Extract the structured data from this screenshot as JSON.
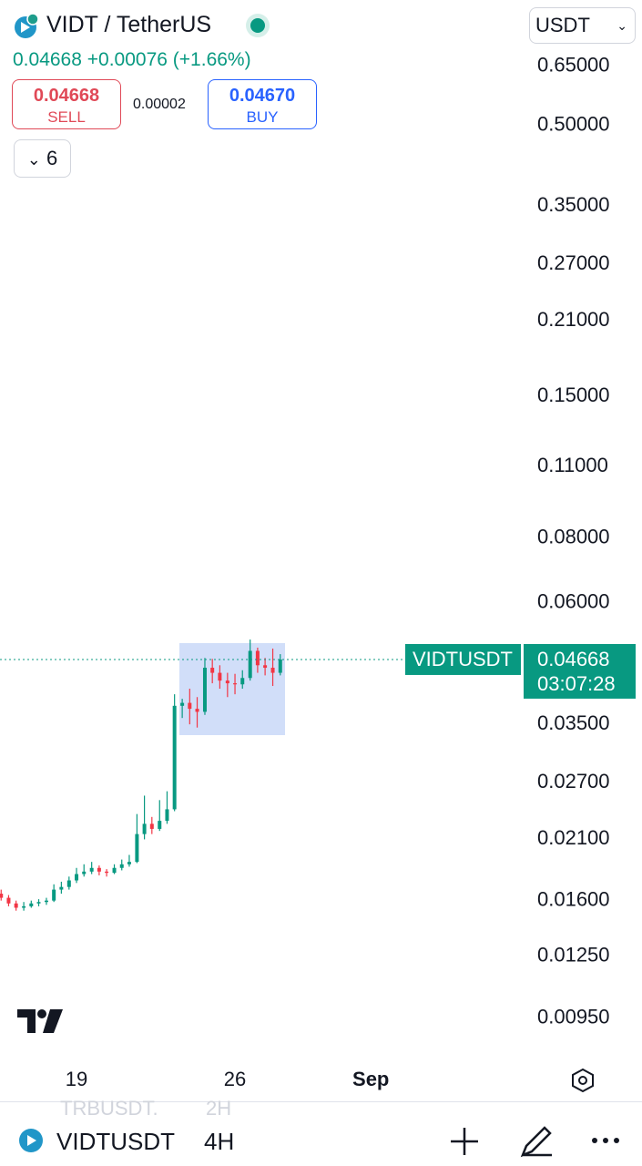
{
  "header": {
    "title": "VIDT / TetherUS",
    "currency": "USDT",
    "last": "0.04668",
    "change": "+0.00076",
    "change_pct": "(+1.66%)",
    "sell_price": "0.04668",
    "sell_label": "SELL",
    "spread": "0.00002",
    "buy_price": "0.04670",
    "buy_label": "BUY",
    "indicator_count": "6"
  },
  "chart_data": {
    "type": "candlestick",
    "log_scale": true,
    "grid": false,
    "up_color": "#089981",
    "down_color": "#f23645",
    "x": [
      15.67,
      16,
      16.33,
      16.67,
      17,
      17.33,
      17.67,
      18,
      18.33,
      18.67,
      19,
      19.33,
      19.67,
      20,
      20.33,
      20.67,
      21,
      21.33,
      21.67,
      22,
      22.33,
      22.67,
      23,
      23.33,
      23.67,
      24,
      24.33,
      24.67,
      25,
      25.33,
      25.67,
      26,
      26.33,
      26.67,
      27,
      27.33,
      27.67,
      28
    ],
    "open": [
      0.0165,
      0.0162,
      0.0158,
      0.0155,
      0.0156,
      0.0158,
      0.0159,
      0.016,
      0.0168,
      0.017,
      0.0175,
      0.018,
      0.0182,
      0.0185,
      0.0182,
      0.0181,
      0.0185,
      0.0188,
      0.019,
      0.0215,
      0.0225,
      0.022,
      0.0228,
      0.024,
      0.038,
      0.0385,
      0.0375,
      0.037,
      0.045,
      0.044,
      0.0425,
      0.042,
      0.0418,
      0.043,
      0.0485,
      0.0455,
      0.045,
      0.044
    ],
    "high": [
      0.0168,
      0.0164,
      0.016,
      0.0159,
      0.016,
      0.0161,
      0.0162,
      0.0172,
      0.0174,
      0.0178,
      0.0185,
      0.0188,
      0.019,
      0.0187,
      0.0184,
      0.0188,
      0.0192,
      0.0196,
      0.0235,
      0.0255,
      0.0232,
      0.025,
      0.026,
      0.04,
      0.0392,
      0.041,
      0.0395,
      0.047,
      0.0468,
      0.0455,
      0.044,
      0.0438,
      0.0445,
      0.051,
      0.0492,
      0.047,
      0.049,
      0.0478
    ],
    "low": [
      0.016,
      0.0156,
      0.0153,
      0.0153,
      0.0155,
      0.0156,
      0.0157,
      0.0159,
      0.0165,
      0.0168,
      0.0173,
      0.0178,
      0.018,
      0.0179,
      0.0178,
      0.018,
      0.0183,
      0.0186,
      0.0189,
      0.021,
      0.0215,
      0.0218,
      0.0225,
      0.0238,
      0.036,
      0.035,
      0.0345,
      0.0365,
      0.042,
      0.041,
      0.0395,
      0.04,
      0.041,
      0.0425,
      0.044,
      0.0435,
      0.0415,
      0.0435
    ],
    "close": [
      0.0162,
      0.0158,
      0.0155,
      0.0156,
      0.0158,
      0.0159,
      0.016,
      0.0168,
      0.017,
      0.0175,
      0.018,
      0.0182,
      0.0185,
      0.0182,
      0.0181,
      0.0185,
      0.0188,
      0.019,
      0.0215,
      0.0225,
      0.022,
      0.0228,
      0.024,
      0.038,
      0.0385,
      0.0375,
      0.037,
      0.045,
      0.044,
      0.0425,
      0.042,
      0.0418,
      0.043,
      0.0485,
      0.0455,
      0.045,
      0.044,
      0.04668
    ],
    "xlim": [
      15.62,
      38.75
    ],
    "xticks": [
      19,
      26,
      {
        "value": 32,
        "label": "Sep"
      }
    ],
    "ylim": [
      0.008,
      0.873
    ],
    "yticks": [
      {
        "value": 0.65,
        "label": "0.65000"
      },
      {
        "value": 0.5,
        "label": "0.50000"
      },
      {
        "value": 0.35,
        "label": "0.35000"
      },
      {
        "value": 0.27,
        "label": "0.27000"
      },
      {
        "value": 0.21,
        "label": "0.21000"
      },
      {
        "value": 0.15,
        "label": "0.15000"
      },
      {
        "value": 0.11,
        "label": "0.11000"
      },
      {
        "value": 0.08,
        "label": "0.08000"
      },
      {
        "value": 0.06,
        "label": "0.06000"
      },
      {
        "value": 0.035,
        "label": "0.03500"
      },
      {
        "value": 0.027,
        "label": "0.02700"
      },
      {
        "value": 0.021,
        "label": "0.02100"
      },
      {
        "value": 0.016,
        "label": "0.01600"
      },
      {
        "value": 0.0125,
        "label": "0.01250"
      },
      {
        "value": 0.0095,
        "label": "0.00950"
      }
    ],
    "symbol": "VIDTUSDT",
    "last_price": {
      "value": 0.04668,
      "label": "0.04668"
    },
    "countdown": "03:07:28"
  },
  "footer": {
    "ghost_symbol": "TRBUSDT.",
    "ghost_interval": "2H",
    "symbol": "VIDTUSDT",
    "interval": "4H"
  }
}
